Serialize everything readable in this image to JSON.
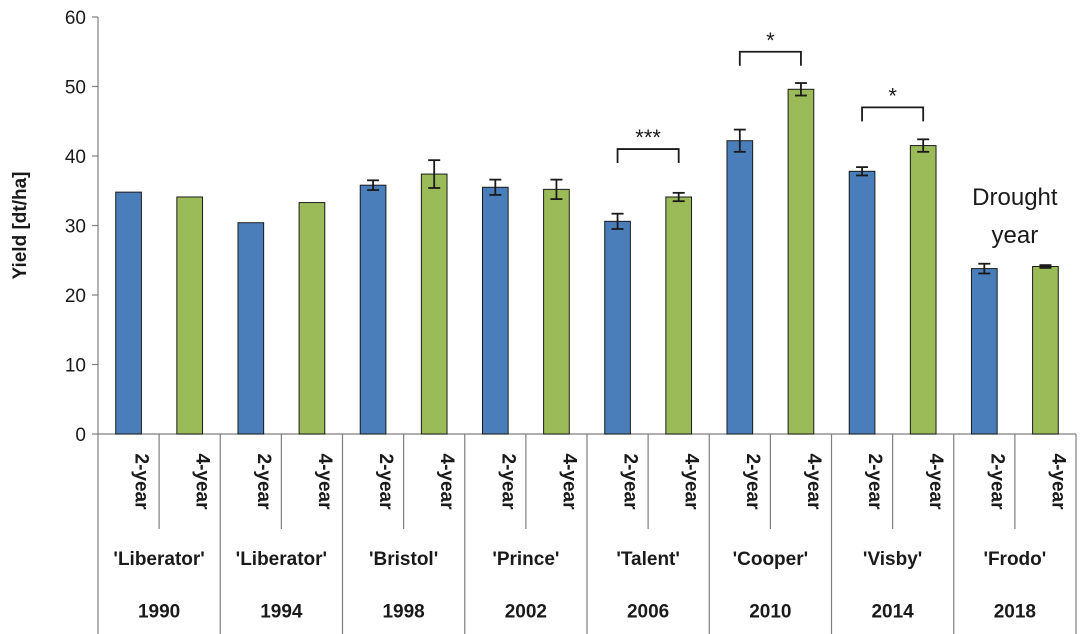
{
  "chart_data": {
    "type": "bar",
    "ylabel": "Yield [dt/ha]",
    "ylim": [
      0,
      60
    ],
    "yticks": [
      0,
      10,
      20,
      30,
      40,
      50,
      60
    ],
    "grid": false,
    "colors": {
      "2-year": "#4a7ebb",
      "4-year": "#9bbb59",
      "axis": "#7f7f7f",
      "text": "#1a1a1a"
    },
    "groups": [
      {
        "year": "1990",
        "cultivar": "'Liberator'",
        "bars": [
          {
            "rotation": "2-year",
            "value": 34.8,
            "error": null
          },
          {
            "rotation": "4-year",
            "value": 34.1,
            "error": null
          }
        ]
      },
      {
        "year": "1994",
        "cultivar": "'Liberator'",
        "bars": [
          {
            "rotation": "2-year",
            "value": 30.4,
            "error": null
          },
          {
            "rotation": "4-year",
            "value": 33.3,
            "error": null
          }
        ]
      },
      {
        "year": "1998",
        "cultivar": "'Bristol'",
        "bars": [
          {
            "rotation": "2-year",
            "value": 35.8,
            "error": 0.7
          },
          {
            "rotation": "4-year",
            "value": 37.4,
            "error": 2.0
          }
        ]
      },
      {
        "year": "2002",
        "cultivar": "'Prince'",
        "bars": [
          {
            "rotation": "2-year",
            "value": 35.5,
            "error": 1.1
          },
          {
            "rotation": "4-year",
            "value": 35.2,
            "error": 1.4
          }
        ]
      },
      {
        "year": "2006",
        "cultivar": "'Talent'",
        "bars": [
          {
            "rotation": "2-year",
            "value": 30.6,
            "error": 1.1
          },
          {
            "rotation": "4-year",
            "value": 34.1,
            "error": 0.6
          }
        ]
      },
      {
        "year": "2010",
        "cultivar": "'Cooper'",
        "bars": [
          {
            "rotation": "2-year",
            "value": 42.2,
            "error": 1.6
          },
          {
            "rotation": "4-year",
            "value": 49.6,
            "error": 0.9
          }
        ]
      },
      {
        "year": "2014",
        "cultivar": "'Visby'",
        "bars": [
          {
            "rotation": "2-year",
            "value": 37.8,
            "error": 0.6
          },
          {
            "rotation": "4-year",
            "value": 41.5,
            "error": 0.9
          }
        ]
      },
      {
        "year": "2018",
        "cultivar": "'Frodo'",
        "bars": [
          {
            "rotation": "2-year",
            "value": 23.8,
            "error": 0.7
          },
          {
            "rotation": "4-year",
            "value": 24.1,
            "error": 0.2
          }
        ]
      }
    ],
    "significance": [
      {
        "group": 4,
        "label": "***",
        "level": 41
      },
      {
        "group": 5,
        "label": "*",
        "level": 55
      },
      {
        "group": 6,
        "label": "*",
        "level": 47
      }
    ],
    "annotations": [
      {
        "group": 7,
        "lines": [
          "Drought",
          "year"
        ]
      }
    ]
  }
}
